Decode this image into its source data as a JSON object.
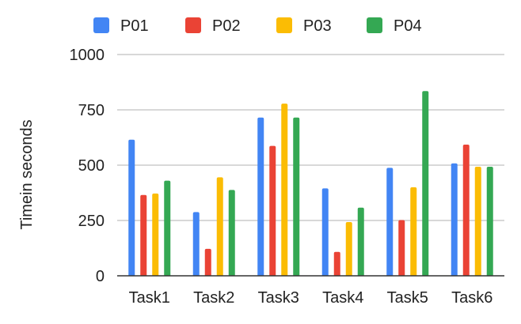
{
  "chart_data": {
    "type": "bar",
    "title": "",
    "xlabel": "",
    "ylabel": "Timein seconds",
    "ylim": [
      0,
      1000
    ],
    "yticks": [
      0,
      250,
      500,
      750,
      1000
    ],
    "grid": true,
    "legend_position": "top",
    "categories": [
      "Task1",
      "Task2",
      "Task3",
      "Task4",
      "Task5",
      "Task6"
    ],
    "series": [
      {
        "name": "P01",
        "color": "#4285F4",
        "values": [
          615,
          288,
          715,
          395,
          488,
          508
        ]
      },
      {
        "name": "P02",
        "color": "#EA4335",
        "values": [
          365,
          122,
          587,
          108,
          252,
          593
        ]
      },
      {
        "name": "P03",
        "color": "#FBBC04",
        "values": [
          372,
          445,
          778,
          243,
          400,
          493
        ]
      },
      {
        "name": "P04",
        "color": "#34A853",
        "values": [
          430,
          388,
          715,
          308,
          835,
          493
        ]
      }
    ]
  }
}
